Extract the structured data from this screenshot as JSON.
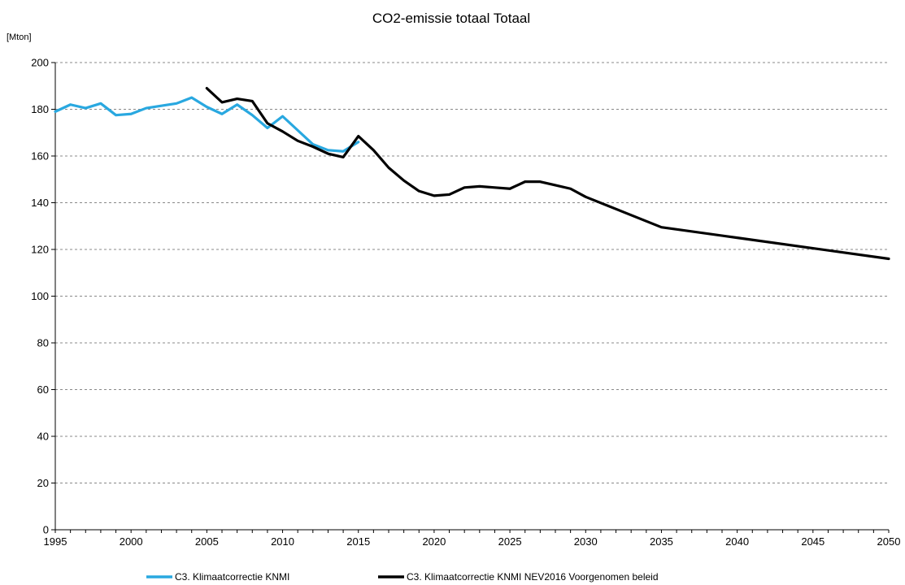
{
  "chart_data": {
    "type": "line",
    "title": "CO2-emissie totaal Totaal",
    "ylabel": "[Mton]",
    "xlabel": "",
    "xlim": [
      1995,
      2050
    ],
    "ylim": [
      0,
      200
    ],
    "x_ticks": [
      1995,
      2000,
      2005,
      2010,
      2015,
      2020,
      2025,
      2030,
      2035,
      2040,
      2045,
      2050
    ],
    "y_ticks": [
      0,
      20,
      40,
      60,
      80,
      100,
      120,
      140,
      160,
      180,
      200
    ],
    "grid": "horizontal dashed",
    "legend_position": "bottom",
    "series": [
      {
        "name": "C3. Klimaatcorrectie KNMI",
        "color": "#29a8e0",
        "points": [
          [
            1995,
            179
          ],
          [
            1996,
            182
          ],
          [
            1997,
            180.5
          ],
          [
            1998,
            182.5
          ],
          [
            1999,
            177.5
          ],
          [
            2000,
            178
          ],
          [
            2001,
            180.5
          ],
          [
            2002,
            181.5
          ],
          [
            2003,
            182.5
          ],
          [
            2004,
            185
          ],
          [
            2005,
            181
          ],
          [
            2006,
            178
          ],
          [
            2007,
            182
          ],
          [
            2008,
            177.5
          ],
          [
            2009,
            172
          ],
          [
            2010,
            177
          ],
          [
            2011,
            171
          ],
          [
            2012,
            165
          ],
          [
            2013,
            162.5
          ],
          [
            2014,
            162
          ],
          [
            2015,
            166
          ]
        ]
      },
      {
        "name": "C3. Klimaatcorrectie KNMI NEV2016 Voorgenomen beleid",
        "color": "#000000",
        "points": [
          [
            2005,
            189
          ],
          [
            2006,
            183
          ],
          [
            2007,
            184.5
          ],
          [
            2008,
            183.5
          ],
          [
            2009,
            174
          ],
          [
            2010,
            170.5
          ],
          [
            2011,
            166.5
          ],
          [
            2012,
            164
          ],
          [
            2013,
            161
          ],
          [
            2014,
            159.5
          ],
          [
            2015,
            168.5
          ],
          [
            2016,
            162.5
          ],
          [
            2017,
            155
          ],
          [
            2018,
            149.5
          ],
          [
            2019,
            145
          ],
          [
            2020,
            143
          ],
          [
            2021,
            143.5
          ],
          [
            2022,
            146.5
          ],
          [
            2023,
            147
          ],
          [
            2024,
            146.5
          ],
          [
            2025,
            146
          ],
          [
            2026,
            149
          ],
          [
            2027,
            149
          ],
          [
            2028,
            147.5
          ],
          [
            2029,
            146
          ],
          [
            2030,
            142.5
          ],
          [
            2035,
            129.5
          ],
          [
            2040,
            125
          ],
          [
            2045,
            120.5
          ],
          [
            2050,
            116
          ]
        ]
      }
    ]
  }
}
